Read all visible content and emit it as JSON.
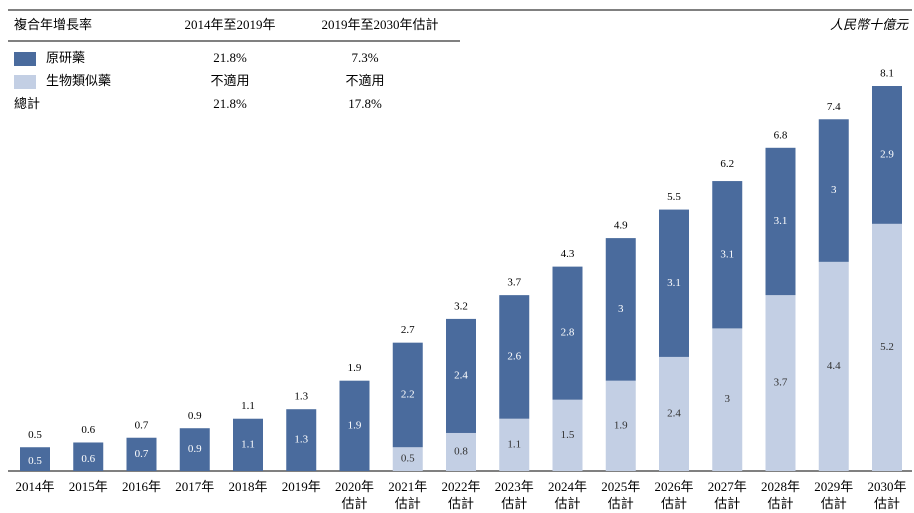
{
  "chart_data": {
    "type": "stacked_bar",
    "unit": "人民幣十億元",
    "cagr_table": {
      "header": [
        "複合年增長率",
        "2014年至2019年",
        "2019年至2030年估計"
      ],
      "rows": [
        [
          "21.8%",
          "7.3%"
        ],
        [
          "不適用",
          "不適用"
        ]
      ],
      "total_label": "總計",
      "total_row": [
        "21.8%",
        "17.8%"
      ]
    },
    "categories": [
      "2014年",
      "2015年",
      "2016年",
      "2017年",
      "2018年",
      "2019年",
      "2020年\n估計",
      "2021年\n估計",
      "2022年\n估計",
      "2023年\n估計",
      "2024年\n估計",
      "2025年\n估計",
      "2026年\n估計",
      "2027年\n估計",
      "2028年\n估計",
      "2029年\n估計",
      "2030年\n估計"
    ],
    "series": [
      {
        "name": "原研藥",
        "color": "#4a6b9d",
        "values": [
          0.5,
          0.6,
          0.7,
          0.9,
          1.1,
          1.3,
          1.9,
          2.2,
          2.4,
          2.6,
          2.8,
          3.0,
          3.1,
          3.1,
          3.1,
          3.0,
          2.9
        ]
      },
      {
        "name": "生物類似藥",
        "color": "#c3cfe4",
        "values": [
          null,
          null,
          null,
          null,
          null,
          null,
          null,
          0.5,
          0.8,
          1.1,
          1.5,
          1.9,
          2.4,
          3.0,
          3.7,
          4.4,
          5.2
        ]
      }
    ],
    "totals": [
      0.5,
      0.6,
      0.7,
      0.9,
      1.1,
      1.3,
      1.9,
      2.7,
      3.2,
      3.7,
      4.3,
      4.9,
      5.5,
      6.2,
      6.8,
      7.4,
      8.1
    ]
  }
}
